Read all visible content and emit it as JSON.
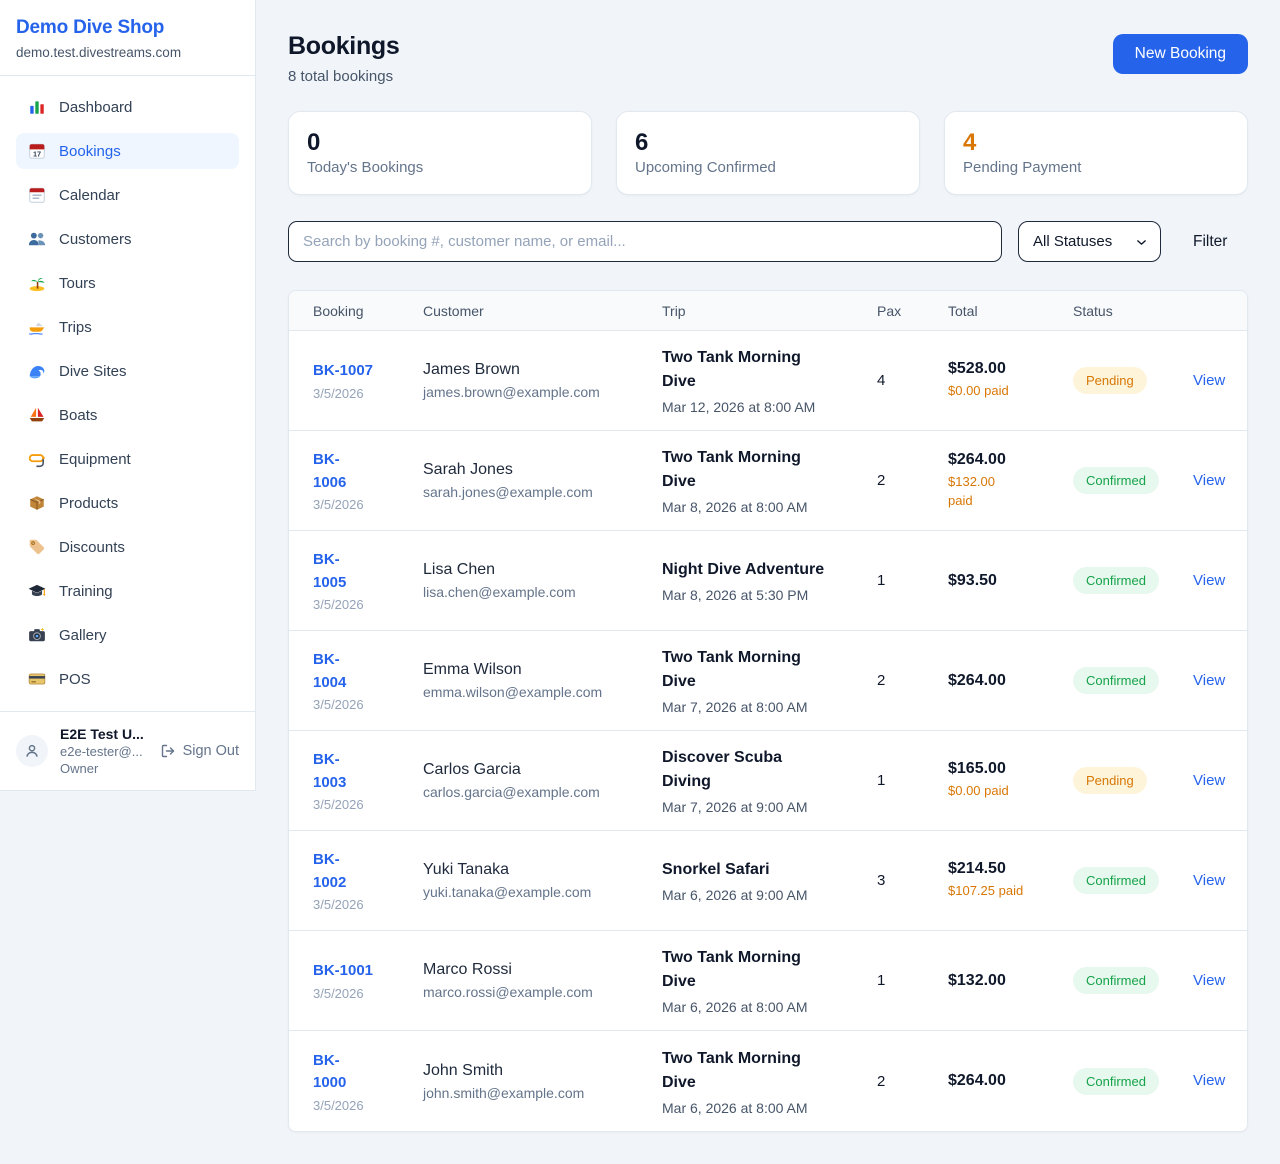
{
  "sidebar": {
    "brand": {
      "title": "Demo Dive Shop",
      "domain": "demo.test.divestreams.com"
    },
    "items": [
      {
        "icon": "dashboard-icon",
        "label": "Dashboard",
        "active": false
      },
      {
        "icon": "bookings-icon",
        "label": "Bookings",
        "active": true
      },
      {
        "icon": "calendar-icon",
        "label": "Calendar",
        "active": false
      },
      {
        "icon": "customers-icon",
        "label": "Customers",
        "active": false
      },
      {
        "icon": "tours-icon",
        "label": "Tours",
        "active": false
      },
      {
        "icon": "trips-icon",
        "label": "Trips",
        "active": false
      },
      {
        "icon": "dive-sites-icon",
        "label": "Dive Sites",
        "active": false
      },
      {
        "icon": "boats-icon",
        "label": "Boats",
        "active": false
      },
      {
        "icon": "equipment-icon",
        "label": "Equipment",
        "active": false
      },
      {
        "icon": "products-icon",
        "label": "Products",
        "active": false
      },
      {
        "icon": "discounts-icon",
        "label": "Discounts",
        "active": false
      },
      {
        "icon": "training-icon",
        "label": "Training",
        "active": false
      },
      {
        "icon": "gallery-icon",
        "label": "Gallery",
        "active": false
      },
      {
        "icon": "pos-icon",
        "label": "POS",
        "active": false
      }
    ],
    "user": {
      "name": "E2E Test U...",
      "email": "e2e-tester@...",
      "role": "Owner",
      "sign_out_label": "Sign Out"
    }
  },
  "header": {
    "title": "Bookings",
    "subtitle": "8 total bookings",
    "new_booking_label": "New Booking"
  },
  "stats": [
    {
      "value": "0",
      "label": "Today's Bookings",
      "accent": "dark"
    },
    {
      "value": "6",
      "label": "Upcoming Confirmed",
      "accent": "dark"
    },
    {
      "value": "4",
      "label": "Pending Payment",
      "accent": "orange"
    }
  ],
  "controls": {
    "search_placeholder": "Search by booking #, customer name, or email...",
    "status_filter_value": "All Statuses",
    "filter_label": "Filter"
  },
  "table": {
    "columns": [
      "Booking",
      "Customer",
      "Trip",
      "Pax",
      "Total",
      "Status"
    ],
    "rows": [
      {
        "id": "BK-1007",
        "date": "3/5/2026",
        "customer": "James Brown",
        "email": "james.brown@example.com",
        "trip": "Two Tank Morning\nDive",
        "when": "Mar 12, 2026 at 8:00 AM",
        "pax": "4",
        "total": "$528.00",
        "paid": "$0.00 paid",
        "status": "Pending",
        "action": "View"
      },
      {
        "id": "BK-\n1006",
        "date": "3/5/2026",
        "customer": "Sarah Jones",
        "email": "sarah.jones@example.com",
        "trip": "Two Tank Morning\nDive",
        "when": "Mar 8, 2026 at 8:00 AM",
        "pax": "2",
        "total": "$264.00",
        "paid": "$132.00\npaid",
        "status": "Confirmed",
        "action": "View"
      },
      {
        "id": "BK-\n1005",
        "date": "3/5/2026",
        "customer": "Lisa Chen",
        "email": "lisa.chen@example.com",
        "trip": "Night Dive Adventure",
        "when": "Mar 8, 2026 at 5:30 PM",
        "pax": "1",
        "total": "$93.50",
        "paid": "",
        "status": "Confirmed",
        "action": "View"
      },
      {
        "id": "BK-\n1004",
        "date": "3/5/2026",
        "customer": "Emma Wilson",
        "email": "emma.wilson@example.com",
        "trip": "Two Tank Morning\nDive",
        "when": "Mar 7, 2026 at 8:00 AM",
        "pax": "2",
        "total": "$264.00",
        "paid": "",
        "status": "Confirmed",
        "action": "View"
      },
      {
        "id": "BK-\n1003",
        "date": "3/5/2026",
        "customer": "Carlos Garcia",
        "email": "carlos.garcia@example.com",
        "trip": "Discover Scuba\nDiving",
        "when": "Mar 7, 2026 at 9:00 AM",
        "pax": "1",
        "total": "$165.00",
        "paid": "$0.00 paid",
        "status": "Pending",
        "action": "View"
      },
      {
        "id": "BK-\n1002",
        "date": "3/5/2026",
        "customer": "Yuki Tanaka",
        "email": "yuki.tanaka@example.com",
        "trip": "Snorkel Safari",
        "when": "Mar 6, 2026 at 9:00 AM",
        "pax": "3",
        "total": "$214.50",
        "paid": "$107.25 paid",
        "status": "Confirmed",
        "action": "View"
      },
      {
        "id": "BK-1001",
        "date": "3/5/2026",
        "customer": "Marco Rossi",
        "email": "marco.rossi@example.com",
        "trip": "Two Tank Morning\nDive",
        "when": "Mar 6, 2026 at 8:00 AM",
        "pax": "1",
        "total": "$132.00",
        "paid": "",
        "status": "Confirmed",
        "action": "View"
      },
      {
        "id": "BK-\n1000",
        "date": "3/5/2026",
        "customer": "John Smith",
        "email": "john.smith@example.com",
        "trip": "Two Tank Morning\nDive",
        "when": "Mar 6, 2026 at 8:00 AM",
        "pax": "2",
        "total": "$264.00",
        "paid": "",
        "status": "Confirmed",
        "action": "View"
      }
    ]
  },
  "colors": {
    "accent_blue": "#2563eb",
    "pending_text": "#d97706",
    "pending_bg": "#fdf4da",
    "confirmed_text": "#16a34a",
    "confirmed_bg": "#e7f8ee",
    "page_bg": "#f1f5f9"
  }
}
